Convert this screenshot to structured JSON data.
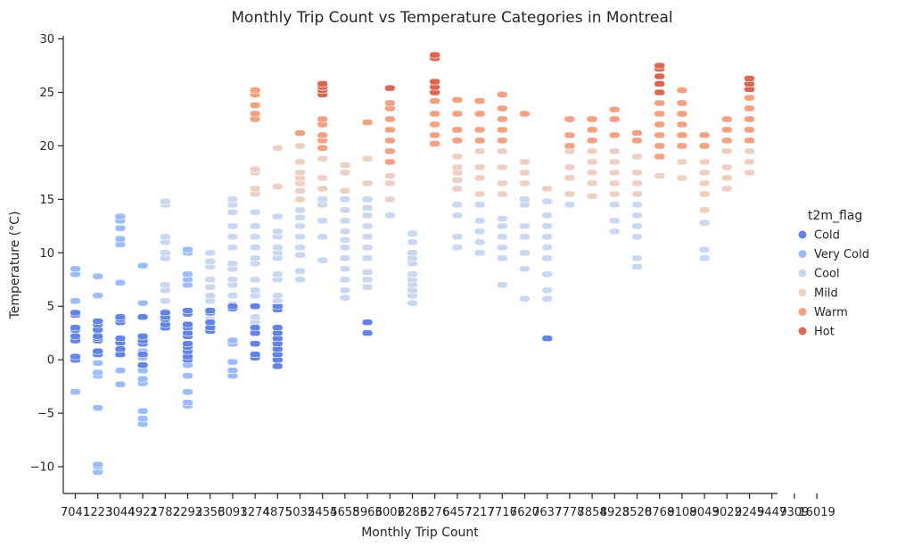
{
  "chart_data": {
    "type": "scatter",
    "title": "Monthly Trip Count vs Temperature Categories in Montreal",
    "xlabel": "Monthly Trip Count",
    "ylabel": "Temperature (°C)",
    "ylim": [
      -12.5,
      30.3
    ],
    "y_ticks": [
      -10,
      -5,
      0,
      5,
      10,
      15,
      20,
      25,
      30
    ],
    "x_categories": [
      "7041",
      "1223",
      "3044",
      "4922",
      "1782",
      "2293",
      "2356",
      "3091",
      "3274",
      "4875",
      "5032",
      "5454",
      "5658",
      "5963",
      "6002",
      "6283",
      "6276",
      "6457",
      "7217",
      "7716",
      "7620",
      "7637",
      "7778",
      "7854",
      "8923",
      "8520",
      "8768",
      "9108",
      "9043",
      "9022",
      "9245",
      "9447",
      "9309",
      "16019"
    ],
    "grid": false,
    "legend": {
      "title": "t2m_flag",
      "placement": "right",
      "entries": [
        {
          "name": "Cold",
          "color": "#6283e8"
        },
        {
          "name": "Very Cold",
          "color": "#9bbcff"
        },
        {
          "name": "Cool",
          "color": "#c9d7f0"
        },
        {
          "name": "Mild",
          "color": "#ecd0c3"
        },
        {
          "name": "Warm",
          "color": "#f3a180"
        },
        {
          "name": "Hot",
          "color": "#dd6652"
        }
      ]
    },
    "points": [
      [
        0,
        "Very Cold",
        [
          -3,
          5.5,
          8,
          8.5
        ]
      ],
      [
        0,
        "Cold",
        [
          0,
          0.3,
          1.8,
          2.2,
          2.8,
          3,
          4.2,
          4.4
        ]
      ],
      [
        1,
        "Very Cold",
        [
          -10.5,
          -10,
          -9.8,
          -4.5,
          -1.5,
          -1.2,
          -0.3,
          6,
          7.8
        ]
      ],
      [
        1,
        "Cold",
        [
          0.5,
          0.8,
          1.8,
          2,
          2.2,
          2.8,
          3.3,
          3.6
        ]
      ],
      [
        2,
        "Very Cold",
        [
          -2.3,
          -1,
          0.5,
          1,
          7.2,
          10.8,
          11.3,
          12.3,
          13,
          13.4
        ]
      ],
      [
        2,
        "Cold",
        [
          0.5,
          1,
          1.6,
          2,
          3.5,
          3.8,
          4
        ]
      ],
      [
        3,
        "Very Cold",
        [
          -6,
          -5.5,
          -4.8,
          -2.2,
          -1.8,
          -1,
          0.2,
          0.8,
          5.3,
          8.8
        ]
      ],
      [
        3,
        "Cold",
        [
          -0.5,
          0.5,
          1.5,
          1.8,
          2.2,
          4
        ]
      ],
      [
        4,
        "Cool",
        [
          4.5,
          5.5,
          6.5,
          7,
          9.5,
          10,
          11,
          11.5,
          14.5,
          14.8
        ]
      ],
      [
        4,
        "Cold",
        [
          3,
          3.3,
          3.8,
          4,
          4.4
        ]
      ],
      [
        5,
        "Very Cold",
        [
          -4.3,
          -4,
          -3,
          -1.5,
          -0.5,
          7,
          7.5,
          8,
          10,
          10.3
        ]
      ],
      [
        5,
        "Cold",
        [
          0,
          0.3,
          0.8,
          1.2,
          1.5,
          2.2,
          2.5,
          3,
          3.3,
          4.3,
          4.6
        ]
      ],
      [
        6,
        "Cool",
        [
          3,
          3.8,
          4.5,
          5.5,
          6,
          6.8,
          7.5,
          8.7,
          9.2,
          10
        ]
      ],
      [
        6,
        "Cold",
        [
          2.7,
          3,
          3.5,
          4.4,
          4.6
        ]
      ],
      [
        7,
        "Very Cold",
        [
          -1.5,
          -1,
          -0.2,
          1.5,
          1.8
        ]
      ],
      [
        7,
        "Cool",
        [
          5.2,
          6,
          7,
          7.5,
          8.5,
          9,
          10.5,
          11.5,
          12.5,
          13.8,
          14.5,
          15
        ]
      ],
      [
        7,
        "Cold",
        [
          4.8,
          5
        ]
      ],
      [
        8,
        "Cool",
        [
          3.5,
          4,
          5,
          6,
          6.5,
          7.5,
          9,
          9.5,
          10.5,
          11.5,
          12.5,
          13.8
        ]
      ],
      [
        8,
        "Cold",
        [
          0.2,
          0.5,
          1.5,
          2.5,
          3,
          5
        ]
      ],
      [
        8,
        "Mild",
        [
          15.5,
          16,
          17.5,
          17.8
        ]
      ],
      [
        8,
        "Warm",
        [
          22.5,
          23,
          23.8,
          24.8,
          25.2
        ]
      ],
      [
        9,
        "Cold",
        [
          -0.6,
          0,
          0.5,
          1,
          1.5,
          2,
          2.5,
          3,
          4.7,
          5
        ]
      ],
      [
        9,
        "Cool",
        [
          5.5,
          6,
          7.5,
          8,
          9.5,
          10,
          10.5,
          11.5,
          12,
          13.4
        ]
      ],
      [
        9,
        "Mild",
        [
          16.2,
          19.8
        ]
      ],
      [
        10,
        "Cool",
        [
          7.5,
          8.3,
          9.8,
          10.5,
          11.5,
          12.5,
          13.3,
          14
        ]
      ],
      [
        10,
        "Mild",
        [
          15,
          15.8,
          16.5,
          17,
          17.5,
          18.5,
          20
        ]
      ],
      [
        10,
        "Warm",
        [
          21.2
        ]
      ],
      [
        11,
        "Cool",
        [
          9.3,
          11.5,
          13,
          14.5,
          15
        ]
      ],
      [
        11,
        "Mild",
        [
          16,
          17,
          18.8
        ]
      ],
      [
        11,
        "Warm",
        [
          19.8,
          20.5,
          21,
          22,
          22.5
        ]
      ],
      [
        11,
        "Hot",
        [
          24.8,
          25.2,
          25.5,
          25.8
        ]
      ],
      [
        12,
        "Cool",
        [
          5.8,
          6.5,
          7.5,
          8.5,
          9.5,
          10.5,
          11.2,
          12,
          13,
          14,
          15
        ]
      ],
      [
        12,
        "Mild",
        [
          15.8,
          17.5,
          18.2
        ]
      ],
      [
        13,
        "Cool",
        [
          6.8,
          7.5,
          8.2,
          9.5,
          10.5,
          11.5,
          12.5,
          13.5,
          14.2,
          15
        ]
      ],
      [
        13,
        "Mild",
        [
          16.5,
          18.8
        ]
      ],
      [
        13,
        "Warm",
        [
          22.2
        ]
      ],
      [
        13,
        "Cold",
        [
          2.5,
          3.5
        ]
      ],
      [
        14,
        "Cool",
        [
          13.5
        ]
      ],
      [
        14,
        "Mild",
        [
          15,
          16.5,
          17.2
        ]
      ],
      [
        14,
        "Warm",
        [
          18.5,
          19.5,
          20.5,
          21.5,
          22.5,
          23.5,
          24
        ]
      ],
      [
        14,
        "Hot",
        [
          25.4
        ]
      ],
      [
        15,
        "Cool",
        [
          5.3,
          6,
          6.5,
          7,
          7.5,
          8,
          9,
          9.5,
          10,
          11,
          11.8
        ]
      ],
      [
        16,
        "Warm",
        [
          20.2,
          21,
          22,
          23,
          24.2
        ]
      ],
      [
        16,
        "Hot",
        [
          25,
          25.5,
          26,
          28.2,
          28.5
        ]
      ],
      [
        17,
        "Cool",
        [
          10.5,
          11.5,
          13.5,
          14.5
        ]
      ],
      [
        17,
        "Mild",
        [
          16,
          16.8,
          17.5,
          18,
          19
        ]
      ],
      [
        17,
        "Warm",
        [
          20.5,
          21.5,
          23,
          24.3
        ]
      ],
      [
        18,
        "Cool",
        [
          10,
          11,
          12,
          13,
          14.5
        ]
      ],
      [
        18,
        "Mild",
        [
          15.5,
          17,
          18,
          19.5
        ]
      ],
      [
        18,
        "Warm",
        [
          20.5,
          21.5,
          23,
          24.2
        ]
      ],
      [
        19,
        "Cool",
        [
          7,
          9.5,
          10.5,
          11.5,
          12.5,
          13.2
        ]
      ],
      [
        19,
        "Mild",
        [
          15.5,
          16.5,
          18,
          19.5
        ]
      ],
      [
        19,
        "Warm",
        [
          20.5,
          21.5,
          22.5,
          23.5,
          24.8
        ]
      ],
      [
        20,
        "Cool",
        [
          5.7,
          8.5,
          10,
          11.5,
          12.5,
          14.5,
          15
        ]
      ],
      [
        20,
        "Mild",
        [
          16.5,
          17.5,
          18.5
        ]
      ],
      [
        20,
        "Warm",
        [
          23
        ]
      ],
      [
        21,
        "Cool",
        [
          5.7,
          6.5,
          8,
          9.5,
          10.5,
          11.5,
          12.5,
          13.5,
          14.8
        ]
      ],
      [
        21,
        "Mild",
        [
          16
        ]
      ],
      [
        21,
        "Cold",
        [
          2
        ]
      ],
      [
        22,
        "Cool",
        [
          14.5
        ]
      ],
      [
        22,
        "Mild",
        [
          15.5,
          17,
          18,
          19.5
        ]
      ],
      [
        22,
        "Warm",
        [
          20,
          21,
          22.5
        ]
      ],
      [
        23,
        "Mild",
        [
          15.3,
          16.5,
          17.5,
          18.5,
          19.5
        ]
      ],
      [
        23,
        "Warm",
        [
          20.5,
          21.5,
          22.5
        ]
      ],
      [
        24,
        "Cool",
        [
          12,
          13,
          14.5
        ]
      ],
      [
        24,
        "Mild",
        [
          15.5,
          16.5,
          17.5,
          18.5,
          19.5
        ]
      ],
      [
        24,
        "Warm",
        [
          21,
          22.5,
          23.4
        ]
      ],
      [
        25,
        "Cool",
        [
          8.7,
          9.5,
          11.5,
          12.5,
          13.5,
          14.5
        ]
      ],
      [
        25,
        "Mild",
        [
          15.5,
          16.5,
          17.5,
          19
        ]
      ],
      [
        25,
        "Warm",
        [
          20.5,
          21.2
        ]
      ],
      [
        26,
        "Mild",
        [
          17.2
        ]
      ],
      [
        26,
        "Warm",
        [
          19,
          20,
          21,
          22,
          23,
          24
        ]
      ],
      [
        26,
        "Hot",
        [
          25,
          25.8,
          26.5,
          27.2,
          27.5
        ]
      ],
      [
        27,
        "Mild",
        [
          17,
          18.5
        ]
      ],
      [
        27,
        "Warm",
        [
          20,
          21,
          22,
          23,
          24,
          25.2
        ]
      ],
      [
        28,
        "Cool",
        [
          9.5,
          10.3,
          12.8
        ]
      ],
      [
        28,
        "Mild",
        [
          14,
          15.5,
          16.5,
          17.5,
          18.5
        ]
      ],
      [
        28,
        "Warm",
        [
          20,
          21
        ]
      ],
      [
        29,
        "Mild",
        [
          16,
          17,
          18,
          19.5
        ]
      ],
      [
        29,
        "Warm",
        [
          20.5,
          21.5,
          22.5
        ]
      ],
      [
        30,
        "Mild",
        [
          17.5,
          18.5,
          19.5
        ]
      ],
      [
        30,
        "Warm",
        [
          20.5,
          21.5,
          22.5,
          23.5,
          24.5
        ]
      ],
      [
        30,
        "Hot",
        [
          25.3,
          25.8,
          26.3
        ]
      ]
    ]
  }
}
